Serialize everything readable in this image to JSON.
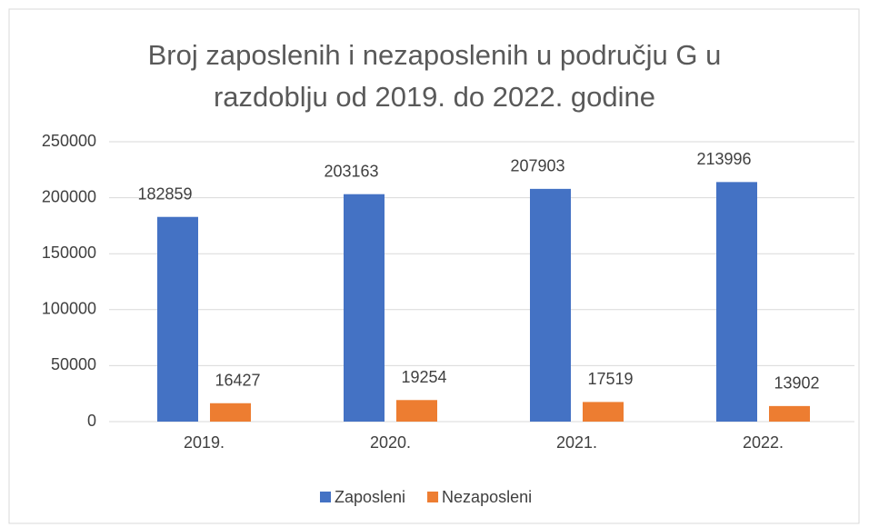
{
  "chart_data": {
    "type": "bar",
    "title": "Broj zaposlenih i nezaposlenih u području G u razdoblju od 2019. do 2022. godine",
    "categories": [
      "2019.",
      "2020.",
      "2021.",
      "2022."
    ],
    "series": [
      {
        "name": "Zaposleni",
        "color": "#4472c4",
        "values": [
          182859,
          203163,
          207903,
          213996
        ]
      },
      {
        "name": "Nezaposleni",
        "color": "#ed7d31",
        "values": [
          16427,
          19254,
          17519,
          13902
        ]
      }
    ],
    "ylim": [
      0,
      250000
    ],
    "yticks": [
      0,
      50000,
      100000,
      150000,
      200000,
      250000
    ],
    "grid": true,
    "legend": "bottom"
  }
}
